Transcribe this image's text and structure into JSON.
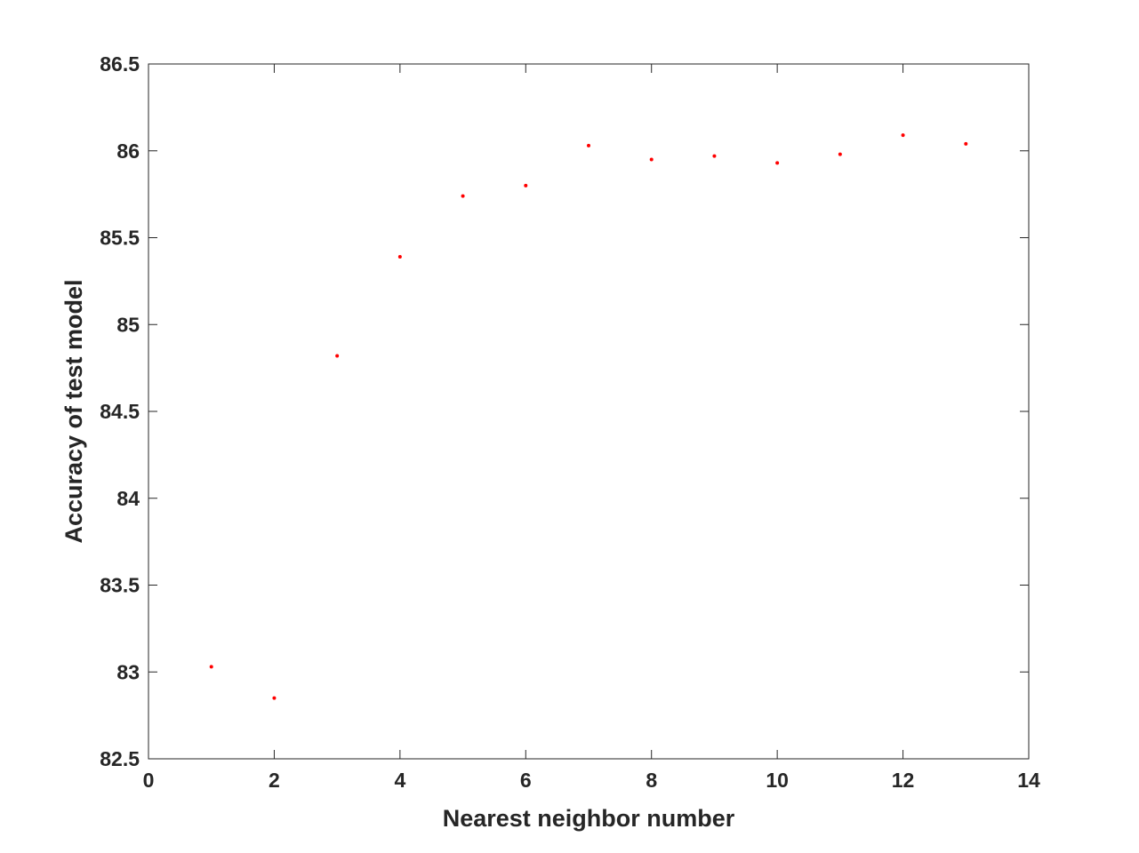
{
  "chart_data": {
    "type": "scatter",
    "title": "",
    "xlabel": "Nearest neighbor number",
    "ylabel": "Accuracy of test model",
    "xlim": [
      0,
      14
    ],
    "ylim": [
      82.5,
      86.5
    ],
    "xticks": [
      "0",
      "2",
      "4",
      "6",
      "8",
      "10",
      "12",
      "14"
    ],
    "yticks": [
      "82.5",
      "83",
      "83.5",
      "84",
      "84.5",
      "85",
      "85.5",
      "86",
      "86.5"
    ],
    "grid": false,
    "marker_color": "#ff0000",
    "x": [
      1,
      2,
      3,
      4,
      5,
      6,
      7,
      8,
      9,
      10,
      11,
      12,
      13
    ],
    "y": [
      83.03,
      82.85,
      84.82,
      85.39,
      85.74,
      85.8,
      86.03,
      85.95,
      85.97,
      85.93,
      85.98,
      86.09,
      86.04
    ]
  }
}
